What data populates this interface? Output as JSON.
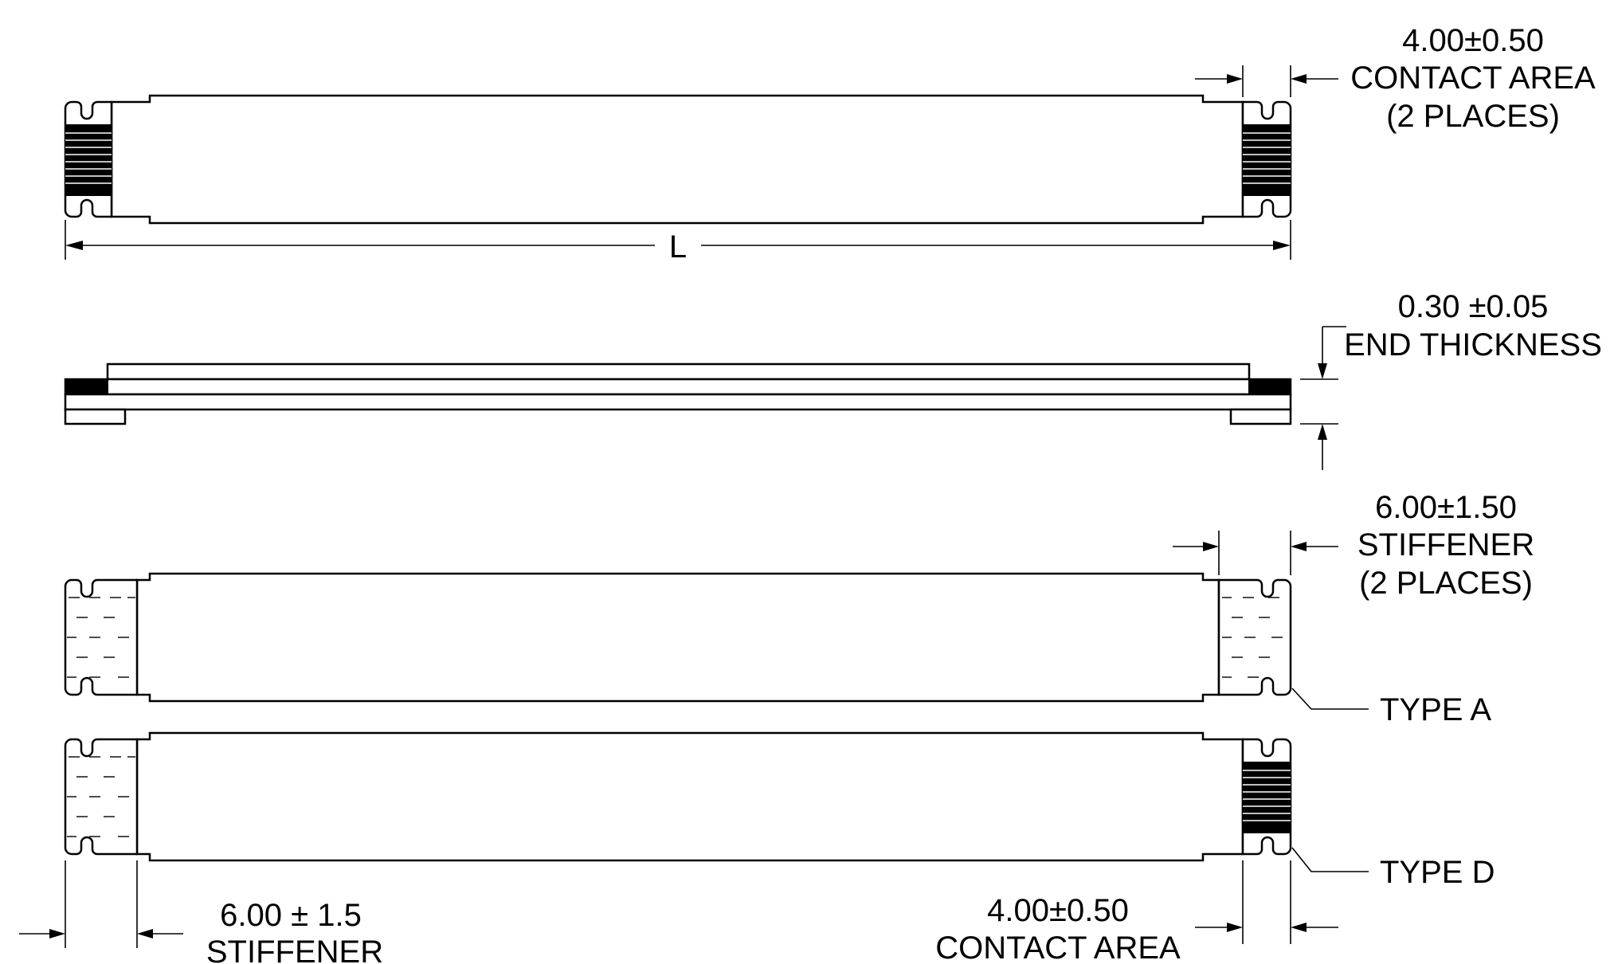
{
  "views": {
    "top": {
      "length_label": "L",
      "contact_area": {
        "line1": "4.00±0.50",
        "line2": "CONTACT AREA",
        "line3": "(2 PLACES)"
      }
    },
    "side": {
      "thickness": {
        "line1": "0.30 ±0.05",
        "line2": "END THICKNESS"
      }
    },
    "type_a": {
      "stiffener": {
        "line1": "6.00±1.50",
        "line2": "STIFFENER",
        "line3": "(2 PLACES)"
      },
      "label": "TYPE A"
    },
    "type_d": {
      "label": "TYPE D",
      "stiffener": {
        "line1": "6.00 ± 1.5",
        "line2": "STIFFENER"
      },
      "contact_area": {
        "line1": "4.00±0.50",
        "line2": "CONTACT AREA"
      }
    }
  }
}
